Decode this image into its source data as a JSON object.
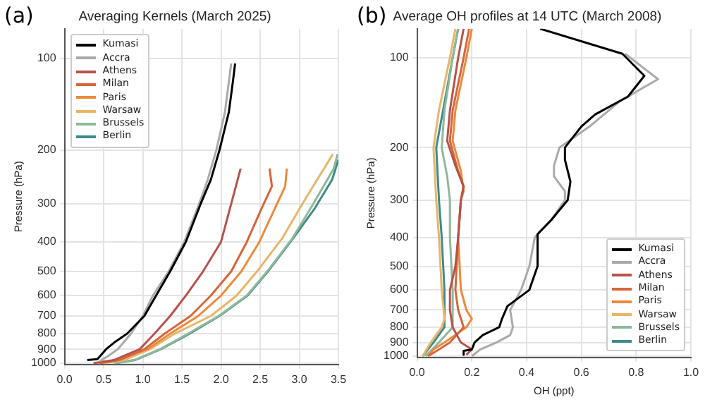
{
  "chart_data": [
    {
      "type": "line",
      "title": "Averaging Kernels (March 2025)",
      "ylabel": "Pressure (hPa)",
      "annotations": [
        "(a)"
      ],
      "log": "y",
      "grid": true,
      "legend": "top left",
      "xlim": [
        0,
        3.5
      ],
      "xticks": [
        {
          "value": 0,
          "label": "0.0"
        },
        {
          "value": 0.5,
          "label": "0.5"
        },
        {
          "value": 1,
          "label": "1.0"
        },
        {
          "value": 1.5,
          "label": "1.5"
        },
        {
          "value": 2,
          "label": "2.0"
        },
        {
          "value": 2.5,
          "label": "2.5"
        },
        {
          "value": 3,
          "label": "3.0"
        },
        {
          "value": 3.5,
          "label": "3.5"
        }
      ],
      "ylim": [
        1010,
        80
      ],
      "yticks": [
        100,
        200,
        300,
        400,
        500,
        600,
        700,
        800,
        900,
        1000
      ],
      "series": [
        {
          "name": "Kumasi",
          "color": "#000000",
          "x": [
            0.29,
            0.42,
            0.53,
            0.65,
            0.8,
            1.02,
            1.17,
            1.35,
            1.55,
            1.74,
            1.87,
            1.98,
            2.1,
            2.15,
            2.18
          ],
          "values": [
            977,
            970,
            900,
            850,
            800,
            700,
            600,
            500,
            400,
            300,
            250,
            200,
            150,
            120,
            104
          ]
        },
        {
          "name": "Accra",
          "color": "#aaaaaa",
          "x": [
            0.45,
            0.55,
            0.68,
            0.85,
            1.0,
            1.13,
            1.33,
            1.53,
            1.72,
            1.83,
            1.94,
            2.05,
            2.13
          ],
          "values": [
            985,
            950,
            900,
            800,
            700,
            600,
            500,
            400,
            300,
            250,
            200,
            150,
            104
          ]
        },
        {
          "name": "Athens",
          "color": "#b5534a",
          "x": [
            0.37,
            0.63,
            0.96,
            1.15,
            1.35,
            1.55,
            1.77,
            2.0,
            2.13,
            2.25
          ],
          "values": [
            1000,
            977,
            900,
            800,
            700,
            600,
            500,
            400,
            300,
            230
          ]
        },
        {
          "name": "Milan",
          "color": "#d8653a",
          "x": [
            0.44,
            0.7,
            1.02,
            1.28,
            1.61,
            1.87,
            2.13,
            2.33,
            2.52,
            2.65,
            2.62
          ],
          "values": [
            1000,
            977,
            900,
            800,
            700,
            600,
            500,
            400,
            310,
            263,
            230
          ]
        },
        {
          "name": "Paris",
          "color": "#ec8a3c",
          "x": [
            0.44,
            0.63,
            1.06,
            1.35,
            1.71,
            2.0,
            2.26,
            2.49,
            2.69,
            2.82,
            2.84
          ],
          "values": [
            1000,
            985,
            900,
            800,
            700,
            600,
            500,
            400,
            310,
            263,
            230
          ]
        },
        {
          "name": "Warsaw",
          "color": "#e9b56a",
          "x": [
            0.5,
            0.76,
            1.09,
            1.41,
            1.87,
            2.2,
            2.46,
            2.78,
            3.04,
            3.43
          ],
          "values": [
            1000,
            977,
            900,
            800,
            700,
            600,
            500,
            390,
            300,
            206
          ]
        },
        {
          "name": "Brussels",
          "color": "#8fb89a",
          "x": [
            0.63,
            0.89,
            1.22,
            1.58,
            1.97,
            2.33,
            2.59,
            2.91,
            3.17,
            3.44,
            3.49
          ],
          "values": [
            1000,
            977,
            900,
            800,
            700,
            600,
            500,
            390,
            303,
            230,
            206
          ]
        },
        {
          "name": "Berlin",
          "color": "#3f8a8a",
          "x": [
            0.65,
            0.9,
            1.23,
            1.6,
            1.98,
            2.34,
            2.6,
            2.92,
            3.2,
            3.42,
            3.5
          ],
          "values": [
            1000,
            977,
            900,
            800,
            700,
            600,
            500,
            390,
            310,
            250,
            215
          ]
        }
      ]
    },
    {
      "type": "line",
      "title": "Average OH profiles at 14 UTC (March 2008)",
      "xlabel": "OH (ppt)",
      "ylabel": "Pressure (hPa)",
      "annotations": [
        "(b)"
      ],
      "log": "y",
      "grid": true,
      "legend": "bottom right",
      "xlim": [
        0,
        1
      ],
      "xticks": [
        {
          "value": 0,
          "label": "0.0"
        },
        {
          "value": 0.2,
          "label": "0.2"
        },
        {
          "value": 0.4,
          "label": "0.4"
        },
        {
          "value": 0.6,
          "label": "0.6"
        },
        {
          "value": 0.8,
          "label": "0.8"
        },
        {
          "value": 1,
          "label": "1.0"
        }
      ],
      "ylim": [
        1010,
        80
      ],
      "yticks": [
        100,
        200,
        300,
        400,
        500,
        600,
        700,
        800,
        900,
        1000
      ],
      "series": [
        {
          "name": "Kumasi",
          "color": "#000000",
          "x": [
            0.45,
            0.75,
            0.83,
            0.77,
            0.65,
            0.6,
            0.54,
            0.54,
            0.56,
            0.55,
            0.49,
            0.44,
            0.44,
            0.41,
            0.33,
            0.31,
            0.3,
            0.24,
            0.21,
            0.2,
            0.17,
            0.17
          ],
          "values": [
            80,
            97,
            115,
            135,
            155,
            170,
            200,
            220,
            260,
            300,
            350,
            390,
            500,
            600,
            680,
            750,
            800,
            850,
            900,
            950,
            960,
            990
          ]
        },
        {
          "name": "Accra",
          "color": "#aaaaaa",
          "x": [
            0.76,
            0.88,
            0.74,
            0.63,
            0.52,
            0.5,
            0.5,
            0.54,
            0.54,
            0.49,
            0.43,
            0.41,
            0.38,
            0.34,
            0.35,
            0.34,
            0.29,
            0.23,
            0.2
          ],
          "values": [
            97,
            118,
            140,
            170,
            200,
            230,
            250,
            280,
            300,
            350,
            400,
            500,
            600,
            700,
            800,
            850,
            900,
            950,
            1000
          ]
        },
        {
          "name": "Athens",
          "color": "#b5534a",
          "x": [
            0.17,
            0.15,
            0.12,
            0.11,
            0.14,
            0.17,
            0.16,
            0.15,
            0.14,
            0.12,
            0.12,
            0.13,
            0.16,
            0.2,
            0.18
          ],
          "values": [
            80,
            100,
            150,
            190,
            230,
            270,
            300,
            400,
            500,
            600,
            700,
            800,
            900,
            950,
            990
          ]
        },
        {
          "name": "Milan",
          "color": "#d8653a",
          "x": [
            0.19,
            0.17,
            0.13,
            0.12,
            0.15,
            0.17,
            0.16,
            0.15,
            0.14,
            0.15,
            0.17,
            0.12,
            0.08,
            0.04
          ],
          "values": [
            80,
            100,
            150,
            190,
            240,
            270,
            300,
            400,
            600,
            700,
            800,
            900,
            950,
            1000
          ]
        },
        {
          "name": "Paris",
          "color": "#ec8a3c",
          "x": [
            0.2,
            0.18,
            0.14,
            0.13,
            0.16,
            0.17,
            0.16,
            0.15,
            0.16,
            0.18,
            0.2,
            0.18,
            0.1,
            0.06,
            0.04
          ],
          "values": [
            80,
            100,
            150,
            190,
            240,
            280,
            300,
            400,
            600,
            700,
            750,
            800,
            900,
            950,
            1000
          ]
        },
        {
          "name": "Warsaw",
          "color": "#e9b56a",
          "x": [
            0.14,
            0.12,
            0.08,
            0.06,
            0.07,
            0.08,
            0.09,
            0.1,
            0.09,
            0.05,
            0.02
          ],
          "values": [
            80,
            100,
            150,
            200,
            300,
            400,
            600,
            750,
            800,
            900,
            1000
          ]
        },
        {
          "name": "Brussels",
          "color": "#8fb89a",
          "x": [
            0.15,
            0.13,
            0.1,
            0.09,
            0.11,
            0.12,
            0.12,
            0.13,
            0.13,
            0.08,
            0.03
          ],
          "values": [
            80,
            100,
            150,
            200,
            250,
            300,
            400,
            600,
            800,
            900,
            1000
          ]
        },
        {
          "name": "Berlin",
          "color": "#3f8a8a",
          "x": [
            0.15,
            0.13,
            0.095,
            0.07,
            0.08,
            0.09,
            0.1,
            0.1,
            0.06,
            0.02
          ],
          "values": [
            80,
            100,
            150,
            200,
            300,
            400,
            600,
            800,
            900,
            1000
          ]
        }
      ]
    }
  ]
}
